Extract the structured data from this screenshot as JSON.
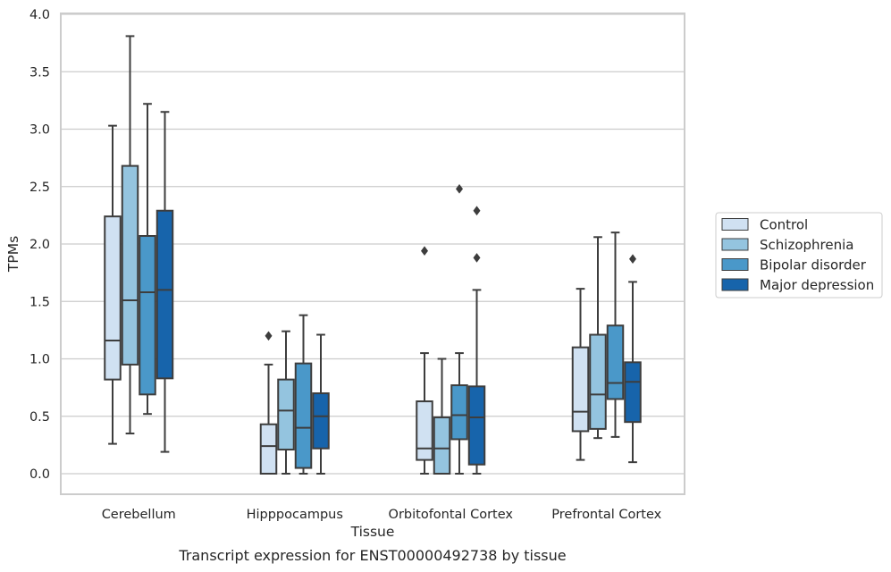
{
  "chart_data": {
    "type": "box",
    "title": "",
    "caption": "Transcript expression for ENST00000492738 by tissue",
    "xlabel": "Tissue",
    "ylabel": "TPMs",
    "ylim": [
      -0.18,
      4.0
    ],
    "yticks": [
      0.0,
      0.5,
      1.0,
      1.5,
      2.0,
      2.5,
      3.0,
      3.5,
      4.0
    ],
    "ytick_labels": [
      "0.0",
      "0.5",
      "1.0",
      "1.5",
      "2.0",
      "2.5",
      "3.0",
      "3.5",
      "4.0"
    ],
    "grid": "horizontal",
    "legend_position": "outside-right",
    "categories": [
      "Cerebellum",
      "Hipppocampus",
      "Orbitofontal Cortex",
      "Prefrontal Cortex"
    ],
    "series": [
      {
        "name": "Control",
        "color": "#d0e1f2",
        "boxes": [
          {
            "whislo": 0.26,
            "q1": 0.82,
            "med": 1.16,
            "q3": 2.24,
            "whishi": 3.03,
            "fliers": []
          },
          {
            "whislo": 0.0,
            "q1": 0.0,
            "med": 0.24,
            "q3": 0.43,
            "whishi": 0.95,
            "fliers": [
              1.2
            ]
          },
          {
            "whislo": 0.0,
            "q1": 0.12,
            "med": 0.22,
            "q3": 0.63,
            "whishi": 1.05,
            "fliers": [
              1.94
            ]
          },
          {
            "whislo": 0.12,
            "q1": 0.37,
            "med": 0.54,
            "q3": 1.1,
            "whishi": 1.61,
            "fliers": []
          }
        ]
      },
      {
        "name": "Schizophrenia",
        "color": "#94c4df",
        "boxes": [
          {
            "whislo": 0.35,
            "q1": 0.95,
            "med": 1.51,
            "q3": 2.68,
            "whishi": 3.81,
            "fliers": []
          },
          {
            "whislo": 0.0,
            "q1": 0.21,
            "med": 0.55,
            "q3": 0.82,
            "whishi": 1.24,
            "fliers": []
          },
          {
            "whislo": 0.0,
            "q1": 0.0,
            "med": 0.22,
            "q3": 0.49,
            "whishi": 1.0,
            "fliers": []
          },
          {
            "whislo": 0.31,
            "q1": 0.39,
            "med": 0.69,
            "q3": 1.21,
            "whishi": 2.06,
            "fliers": []
          }
        ]
      },
      {
        "name": "Bipolar disorder",
        "color": "#4a98c9",
        "boxes": [
          {
            "whislo": 0.52,
            "q1": 0.69,
            "med": 1.58,
            "q3": 2.07,
            "whishi": 3.22,
            "fliers": []
          },
          {
            "whislo": 0.0,
            "q1": 0.05,
            "med": 0.4,
            "q3": 0.96,
            "whishi": 1.38,
            "fliers": []
          },
          {
            "whislo": 0.0,
            "q1": 0.3,
            "med": 0.51,
            "q3": 0.77,
            "whishi": 1.05,
            "fliers": [
              2.48
            ]
          },
          {
            "whislo": 0.32,
            "q1": 0.65,
            "med": 0.79,
            "q3": 1.29,
            "whishi": 2.1,
            "fliers": []
          }
        ]
      },
      {
        "name": "Major depression",
        "color": "#1764ab",
        "boxes": [
          {
            "whislo": 0.19,
            "q1": 0.83,
            "med": 1.6,
            "q3": 2.29,
            "whishi": 3.15,
            "fliers": []
          },
          {
            "whislo": 0.0,
            "q1": 0.22,
            "med": 0.5,
            "q3": 0.7,
            "whishi": 1.21,
            "fliers": []
          },
          {
            "whislo": 0.0,
            "q1": 0.08,
            "med": 0.49,
            "q3": 0.76,
            "whishi": 1.6,
            "fliers": [
              1.88,
              2.29
            ]
          },
          {
            "whislo": 0.1,
            "q1": 0.45,
            "med": 0.8,
            "q3": 0.97,
            "whishi": 1.67,
            "fliers": [
              1.87
            ]
          }
        ]
      }
    ]
  }
}
